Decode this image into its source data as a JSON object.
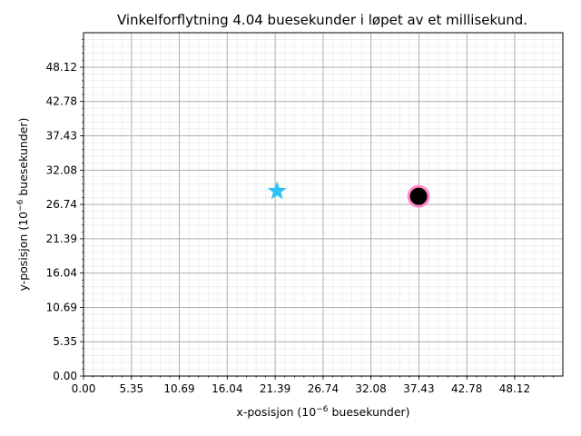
{
  "chart_data": {
    "type": "scatter",
    "title": "Vinkelforflytning 4.04 buesekunder i løpet av et millisekund.",
    "xlabel_prefix": "x-posisjon (10",
    "ylabel_prefix": "y-posisjon (10",
    "label_exponent": "−6",
    "label_suffix": " buesekunder)",
    "xlim": [
      0,
      53.5
    ],
    "ylim": [
      0,
      53.5
    ],
    "xticks": [
      0.0,
      5.35,
      10.69,
      16.04,
      21.39,
      26.74,
      32.08,
      37.43,
      42.78,
      48.12
    ],
    "yticks": [
      0.0,
      5.35,
      10.69,
      16.04,
      21.39,
      26.74,
      32.08,
      37.43,
      42.78,
      48.12
    ],
    "xtick_labels": [
      "0.00",
      "5.35",
      "10.69",
      "16.04",
      "21.39",
      "26.74",
      "32.08",
      "37.43",
      "42.78",
      "48.12"
    ],
    "ytick_labels": [
      "0.00",
      "5.35",
      "10.69",
      "16.04",
      "21.39",
      "26.74",
      "32.08",
      "37.43",
      "42.78",
      "48.12"
    ],
    "grid": true,
    "minor_grid": true,
    "points": [
      {
        "marker": "star",
        "x": 21.6,
        "y": 28.8,
        "color": "#29c4f2"
      },
      {
        "marker": "circle-halo",
        "x": 37.4,
        "y": 28.0,
        "color": "#ff88c8"
      },
      {
        "marker": "circle",
        "x": 37.4,
        "y": 28.0,
        "color": "#000000"
      }
    ],
    "colors": {
      "grid_major": "#b0b0b0",
      "grid_minor": "#ececec",
      "axis": "#000000"
    }
  }
}
